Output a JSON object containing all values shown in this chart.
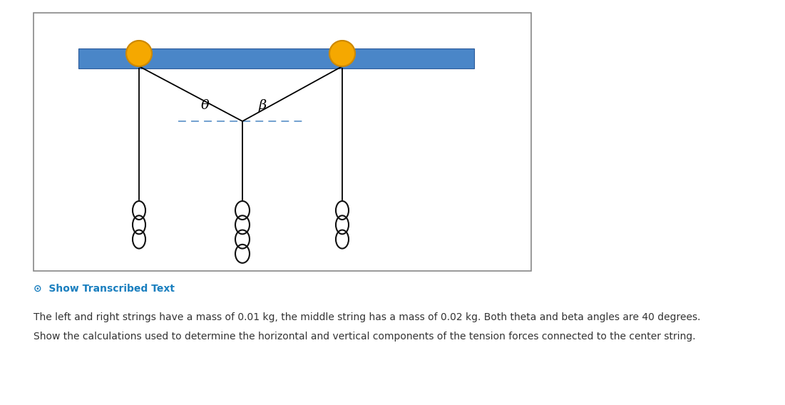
{
  "bg_color": "#ffffff",
  "bar_color": "#4a86c8",
  "bar_edge_color": "#2a5a9a",
  "pulley_color": "#f5a800",
  "pulley_border_color": "#cc8800",
  "string_color": "#000000",
  "dashed_line_color": "#6699cc",
  "mass_color": "#111111",
  "box_edge_color": "#888888",
  "text_color_blue": "#1a7fbf",
  "text_color_black": "#333333",
  "angle_label_theta": "θ",
  "angle_label_beta": "β",
  "show_transcribed_icon": "⊙",
  "show_transcribed_text": "Show Transcribed Text",
  "text_line1": "The left and right strings have a mass of 0.01 kg, the middle string has a mass of 0.02 kg. Both theta and beta angles are 40 degrees.",
  "text_line2": "Show the calculations used to determine the horizontal and vertical components of the tension forces connected to the center string."
}
